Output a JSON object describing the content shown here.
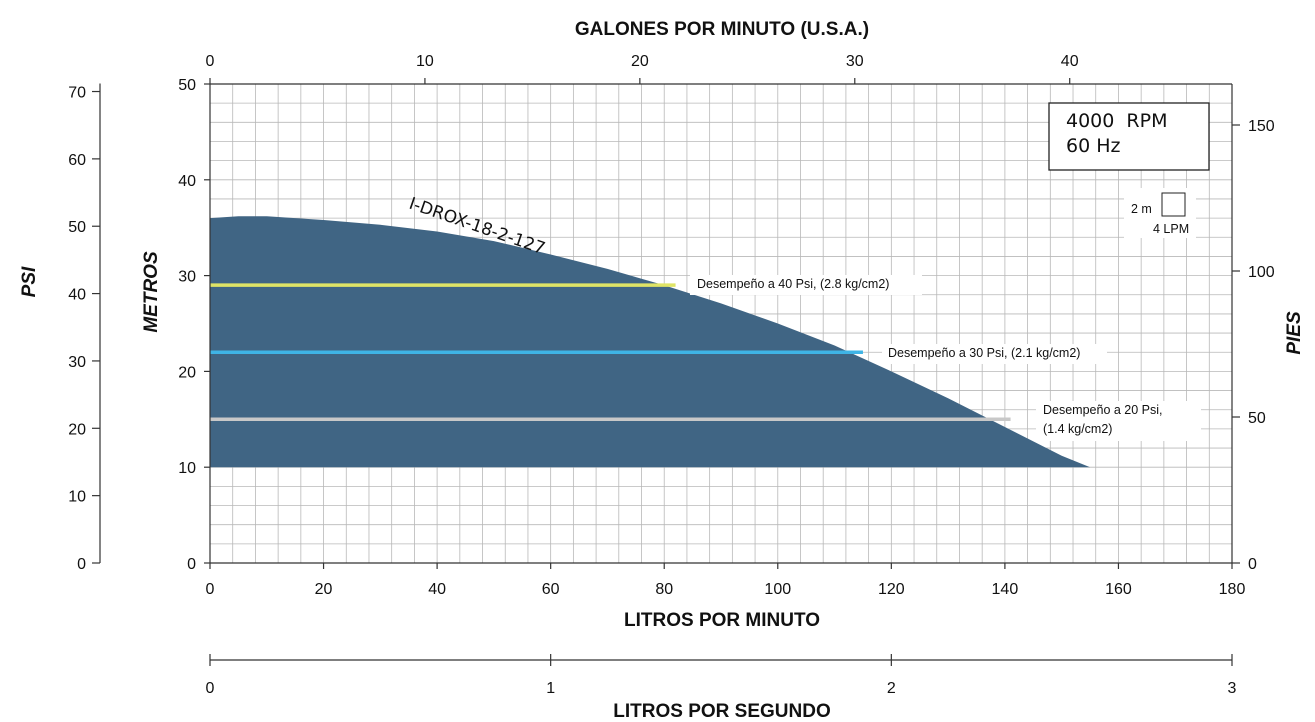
{
  "chart_data": {
    "type": "area",
    "axes": {
      "top": {
        "title": "GALONES POR MINUTO (U.S.A.)",
        "ticks": [
          "0",
          "10",
          "20",
          "30",
          "40"
        ]
      },
      "bottom": {
        "title": "LITROS POR MINUTO",
        "ticks": [
          "0",
          "20",
          "40",
          "60",
          "80",
          "100",
          "120",
          "140",
          "160",
          "180"
        ],
        "range": [
          0,
          180
        ]
      },
      "second_bottom": {
        "title": "LITROS POR SEGUNDO",
        "ticks": [
          "0",
          "1",
          "2",
          "3"
        ],
        "range": [
          0,
          3
        ]
      },
      "left_meters": {
        "title": "METROS",
        "ticks": [
          "0",
          "10",
          "20",
          "30",
          "40",
          "50"
        ],
        "range": [
          0,
          50
        ]
      },
      "left_psi": {
        "title": "PSI",
        "ticks": [
          "0",
          "10",
          "20",
          "30",
          "40",
          "50",
          "60",
          "70"
        ]
      },
      "right_feet": {
        "title": "PIES",
        "ticks": [
          "0",
          "50",
          "100",
          "150"
        ]
      }
    },
    "grid": true,
    "series": [
      {
        "name": "I-DROX-18-2-127",
        "color": "#406584",
        "x": [
          0,
          5,
          10,
          20,
          30,
          40,
          50,
          60,
          70,
          80,
          90,
          100,
          110,
          120,
          130,
          140,
          150,
          155
        ],
        "y": [
          36,
          36.2,
          36.2,
          35.8,
          35.3,
          34.6,
          33.6,
          32.2,
          30.7,
          29.0,
          27.1,
          25.0,
          22.7,
          20.0,
          17.2,
          14.2,
          11.2,
          10
        ]
      }
    ],
    "performance_lines": [
      {
        "label": "Desempeño a 40 Psi, (2.8 kg/cm2)",
        "y": 29,
        "x_end": 82,
        "color": "#dfe466"
      },
      {
        "label": "Desempeño a 30 Psi, (2.1 kg/cm2)",
        "y": 22,
        "x_end": 115,
        "color": "#3fb4e6"
      },
      {
        "label": "Desempeño a 20 Psi,",
        "label2": "(1.4 kg/cm2)",
        "y": 15,
        "x_end": 141,
        "color": "#c8c8c8"
      }
    ],
    "annotations": {
      "speed_line1": "4000  RPM",
      "speed_line2": "60 Hz",
      "scale_m": "2 m",
      "scale_lpm": "4 LPM"
    }
  }
}
